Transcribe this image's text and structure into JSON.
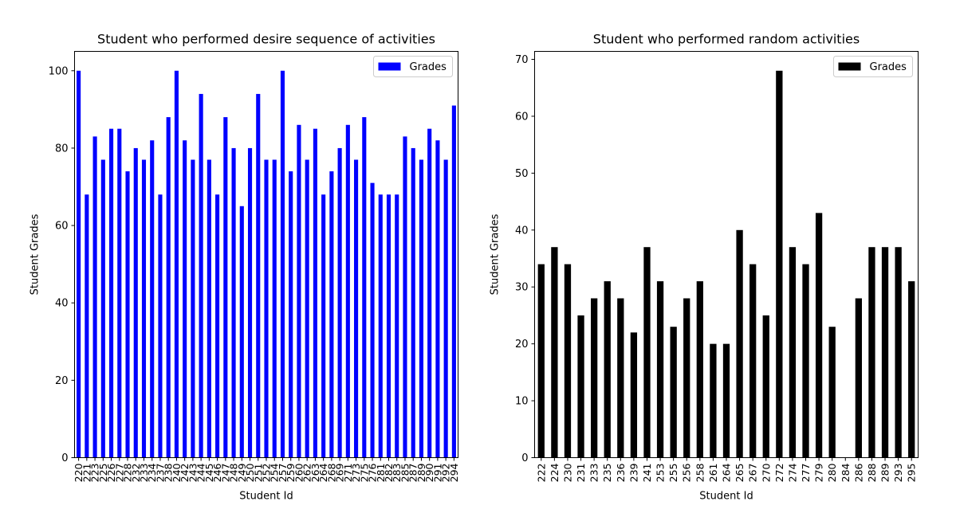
{
  "chart_data": [
    {
      "type": "bar",
      "title": "Student who performed desire sequence of activities",
      "xlabel": "Student Id",
      "ylabel": "Student Grades",
      "ylim": [
        0,
        105
      ],
      "yticks": [
        0,
        20,
        40,
        60,
        80,
        100
      ],
      "legend": "top-right",
      "grid": false,
      "categories": [
        "220",
        "221",
        "223",
        "225",
        "226",
        "227",
        "228",
        "232",
        "233",
        "234",
        "237",
        "238",
        "240",
        "242",
        "243",
        "244",
        "245",
        "246",
        "247",
        "248",
        "249",
        "250",
        "251",
        "252",
        "254",
        "257",
        "259",
        "260",
        "262",
        "263",
        "264",
        "268",
        "269",
        "271",
        "273",
        "275",
        "276",
        "281",
        "282",
        "283",
        "285",
        "287",
        "289",
        "290",
        "291",
        "292",
        "294"
      ],
      "series": [
        {
          "name": "Grades",
          "color": "#0000ff",
          "values": [
            100,
            68,
            83,
            77,
            85,
            85,
            74,
            80,
            77,
            82,
            68,
            88,
            100,
            82,
            77,
            94,
            77,
            68,
            88,
            80,
            65,
            80,
            94,
            77,
            77,
            100,
            74,
            86,
            77,
            85,
            68,
            74,
            80,
            86,
            77,
            88,
            71,
            68,
            68,
            68,
            83,
            80,
            77,
            85,
            82,
            77,
            91
          ]
        }
      ]
    },
    {
      "type": "bar",
      "title": "Student who performed random activities",
      "xlabel": "Student Id",
      "ylabel": "Student Grades",
      "ylim": [
        0,
        71.4
      ],
      "yticks": [
        0,
        10,
        20,
        30,
        40,
        50,
        60,
        70
      ],
      "legend": "top-right",
      "grid": false,
      "categories": [
        "222",
        "224",
        "230",
        "231",
        "233",
        "235",
        "236",
        "239",
        "241",
        "253",
        "255",
        "256",
        "258",
        "261",
        "264",
        "265",
        "267",
        "270",
        "272",
        "274",
        "277",
        "279",
        "280",
        "284",
        "286",
        "288",
        "289",
        "293",
        "295"
      ],
      "series": [
        {
          "name": "Grades",
          "color": "#000000",
          "values": [
            34,
            37,
            34,
            25,
            28,
            31,
            28,
            22,
            37,
            31,
            23,
            28,
            31,
            20,
            20,
            40,
            34,
            25,
            68,
            37,
            34,
            43,
            23,
            0,
            28,
            37,
            37,
            37,
            31
          ]
        }
      ]
    }
  ]
}
